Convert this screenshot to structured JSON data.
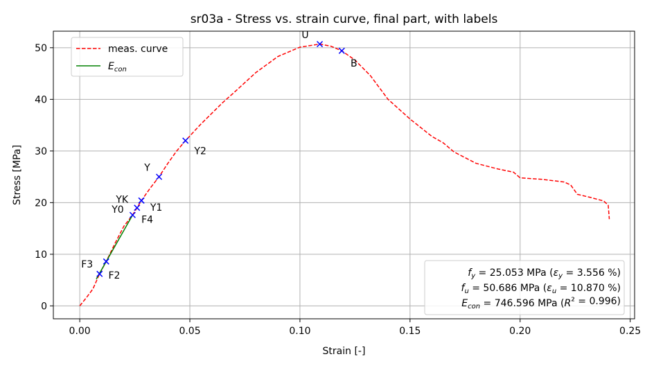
{
  "chart_data": {
    "type": "line",
    "title": "sr03a - Stress vs. strain curve, final part, with labels",
    "xlabel": "Strain [-]",
    "ylabel": "Stress [MPa]",
    "xlim": [
      -0.012,
      0.252
    ],
    "ylim": [
      -2.5,
      53.2
    ],
    "grid": true,
    "legend_position": "top-left",
    "x_ticks": [
      {
        "value": 0.0,
        "label": "0.00"
      },
      {
        "value": 0.05,
        "label": "0.05"
      },
      {
        "value": 0.1,
        "label": "0.10"
      },
      {
        "value": 0.15,
        "label": "0.15"
      },
      {
        "value": 0.2,
        "label": "0.20"
      },
      {
        "value": 0.25,
        "label": "0.25"
      }
    ],
    "y_ticks": [
      {
        "value": 0,
        "label": "0"
      },
      {
        "value": 10,
        "label": "10"
      },
      {
        "value": 20,
        "label": "20"
      },
      {
        "value": 30,
        "label": "30"
      },
      {
        "value": 40,
        "label": "40"
      },
      {
        "value": 50,
        "label": "50"
      }
    ],
    "series": [
      {
        "name": "meas. curve",
        "color": "#ff0000",
        "style": "dashed",
        "points": [
          [
            0.0,
            0.0
          ],
          [
            0.003,
            1.6
          ],
          [
            0.006,
            3.3
          ],
          [
            0.009,
            6.2
          ],
          [
            0.012,
            8.6
          ],
          [
            0.016,
            12.1
          ],
          [
            0.02,
            15.4
          ],
          [
            0.024,
            17.6
          ],
          [
            0.026,
            19.0
          ],
          [
            0.028,
            20.4
          ],
          [
            0.032,
            22.8
          ],
          [
            0.036,
            25.0
          ],
          [
            0.04,
            27.6
          ],
          [
            0.044,
            30.0
          ],
          [
            0.048,
            32.0
          ],
          [
            0.055,
            35.2
          ],
          [
            0.065,
            39.4
          ],
          [
            0.07,
            41.3
          ],
          [
            0.08,
            45.2
          ],
          [
            0.09,
            48.3
          ],
          [
            0.1,
            50.1
          ],
          [
            0.109,
            50.7
          ],
          [
            0.114,
            50.3
          ],
          [
            0.119,
            49.4
          ],
          [
            0.125,
            47.6
          ],
          [
            0.132,
            44.6
          ],
          [
            0.14,
            40.0
          ],
          [
            0.15,
            36.2
          ],
          [
            0.16,
            32.8
          ],
          [
            0.165,
            31.6
          ],
          [
            0.17,
            29.8
          ],
          [
            0.18,
            27.6
          ],
          [
            0.19,
            26.5
          ],
          [
            0.197,
            25.9
          ],
          [
            0.2,
            24.8
          ],
          [
            0.21,
            24.5
          ],
          [
            0.22,
            24.0
          ],
          [
            0.223,
            23.4
          ],
          [
            0.226,
            21.6
          ],
          [
            0.232,
            21.0
          ],
          [
            0.238,
            20.3
          ],
          [
            0.24,
            19.5
          ],
          [
            0.2405,
            16.8
          ]
        ]
      },
      {
        "name": "E_con",
        "color": "#008000",
        "style": "solid",
        "points": [
          [
            0.0075,
            5.2
          ],
          [
            0.024,
            17.6
          ]
        ]
      }
    ],
    "markers": [
      {
        "label": "U",
        "x": 0.109,
        "y": 50.7,
        "label_dx": -0.005,
        "label_dy": 1.7
      },
      {
        "label": "B",
        "x": 0.119,
        "y": 49.4,
        "label_dx": 0.004,
        "label_dy": -2.5
      },
      {
        "label": "Y2",
        "x": 0.048,
        "y": 32.0,
        "label_dx": 0.004,
        "label_dy": -2.1
      },
      {
        "label": "Y",
        "x": 0.036,
        "y": 25.0,
        "label_dx": -0.004,
        "label_dy": 1.7
      },
      {
        "label": "YK",
        "x": 0.028,
        "y": 20.4,
        "label_dx": -0.006,
        "label_dy": 0.1
      },
      {
        "label": "Y1",
        "x": 0.028,
        "y": 20.4,
        "label_dx": 0.004,
        "label_dy": -1.4
      },
      {
        "label": "Y0",
        "x": 0.026,
        "y": 19.0,
        "label_dx": -0.006,
        "label_dy": -0.4
      },
      {
        "label": "F4",
        "x": 0.024,
        "y": 17.6,
        "label_dx": 0.004,
        "label_dy": -1.0
      },
      {
        "label": "F3",
        "x": 0.012,
        "y": 8.6,
        "label_dx": -0.006,
        "label_dy": -0.6
      },
      {
        "label": "F2",
        "x": 0.009,
        "y": 6.2,
        "label_dx": 0.004,
        "label_dy": -0.4
      }
    ],
    "legend": [
      {
        "label": "meas. curve",
        "color": "#ff0000",
        "style": "dashed"
      },
      {
        "label": "E",
        "sub": "con",
        "color": "#008000",
        "style": "solid"
      }
    ],
    "annotation_lines": [
      {
        "sym": "f",
        "sub": "y",
        "text": " = 25.053 MPa (",
        "sym2": "ε",
        "sub2": "y",
        "text2": " = 3.556 %)"
      },
      {
        "sym": "f",
        "sub": "u",
        "text": " = 50.686 MPa (",
        "sym2": "ε",
        "sub2": "u",
        "text2": " = 10.870 %)"
      },
      {
        "sym": "E",
        "sub": "con",
        "text": " =  746.596 MPa (",
        "sym2": "R",
        "sub2": "",
        "text2": "² = 0.996)"
      }
    ],
    "colors": {
      "marker": "#0000ff",
      "grid": "#b0b0b0",
      "axis": "#000000"
    }
  }
}
